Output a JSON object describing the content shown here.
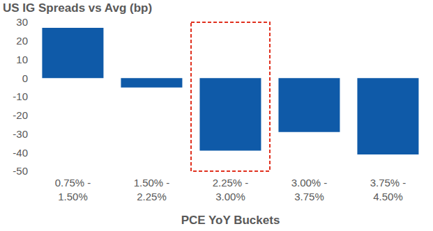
{
  "chart_data": {
    "type": "bar",
    "title": "US IG Spreads vs Avg (bp)",
    "xlabel": "PCE YoY Buckets",
    "categories": [
      "0.75% - 1.50%",
      "1.50% - 2.25%",
      "2.25% - 3.00%",
      "3.00% - 3.75%",
      "3.75% - 4.50%"
    ],
    "values": [
      27,
      -5,
      -39,
      -29,
      -41
    ],
    "color": "#0f5aa8",
    "ylim": [
      -50,
      30
    ],
    "yticks": [
      -50,
      -40,
      -30,
      -20,
      -10,
      0,
      10,
      20,
      30
    ],
    "grid": false
  }
}
